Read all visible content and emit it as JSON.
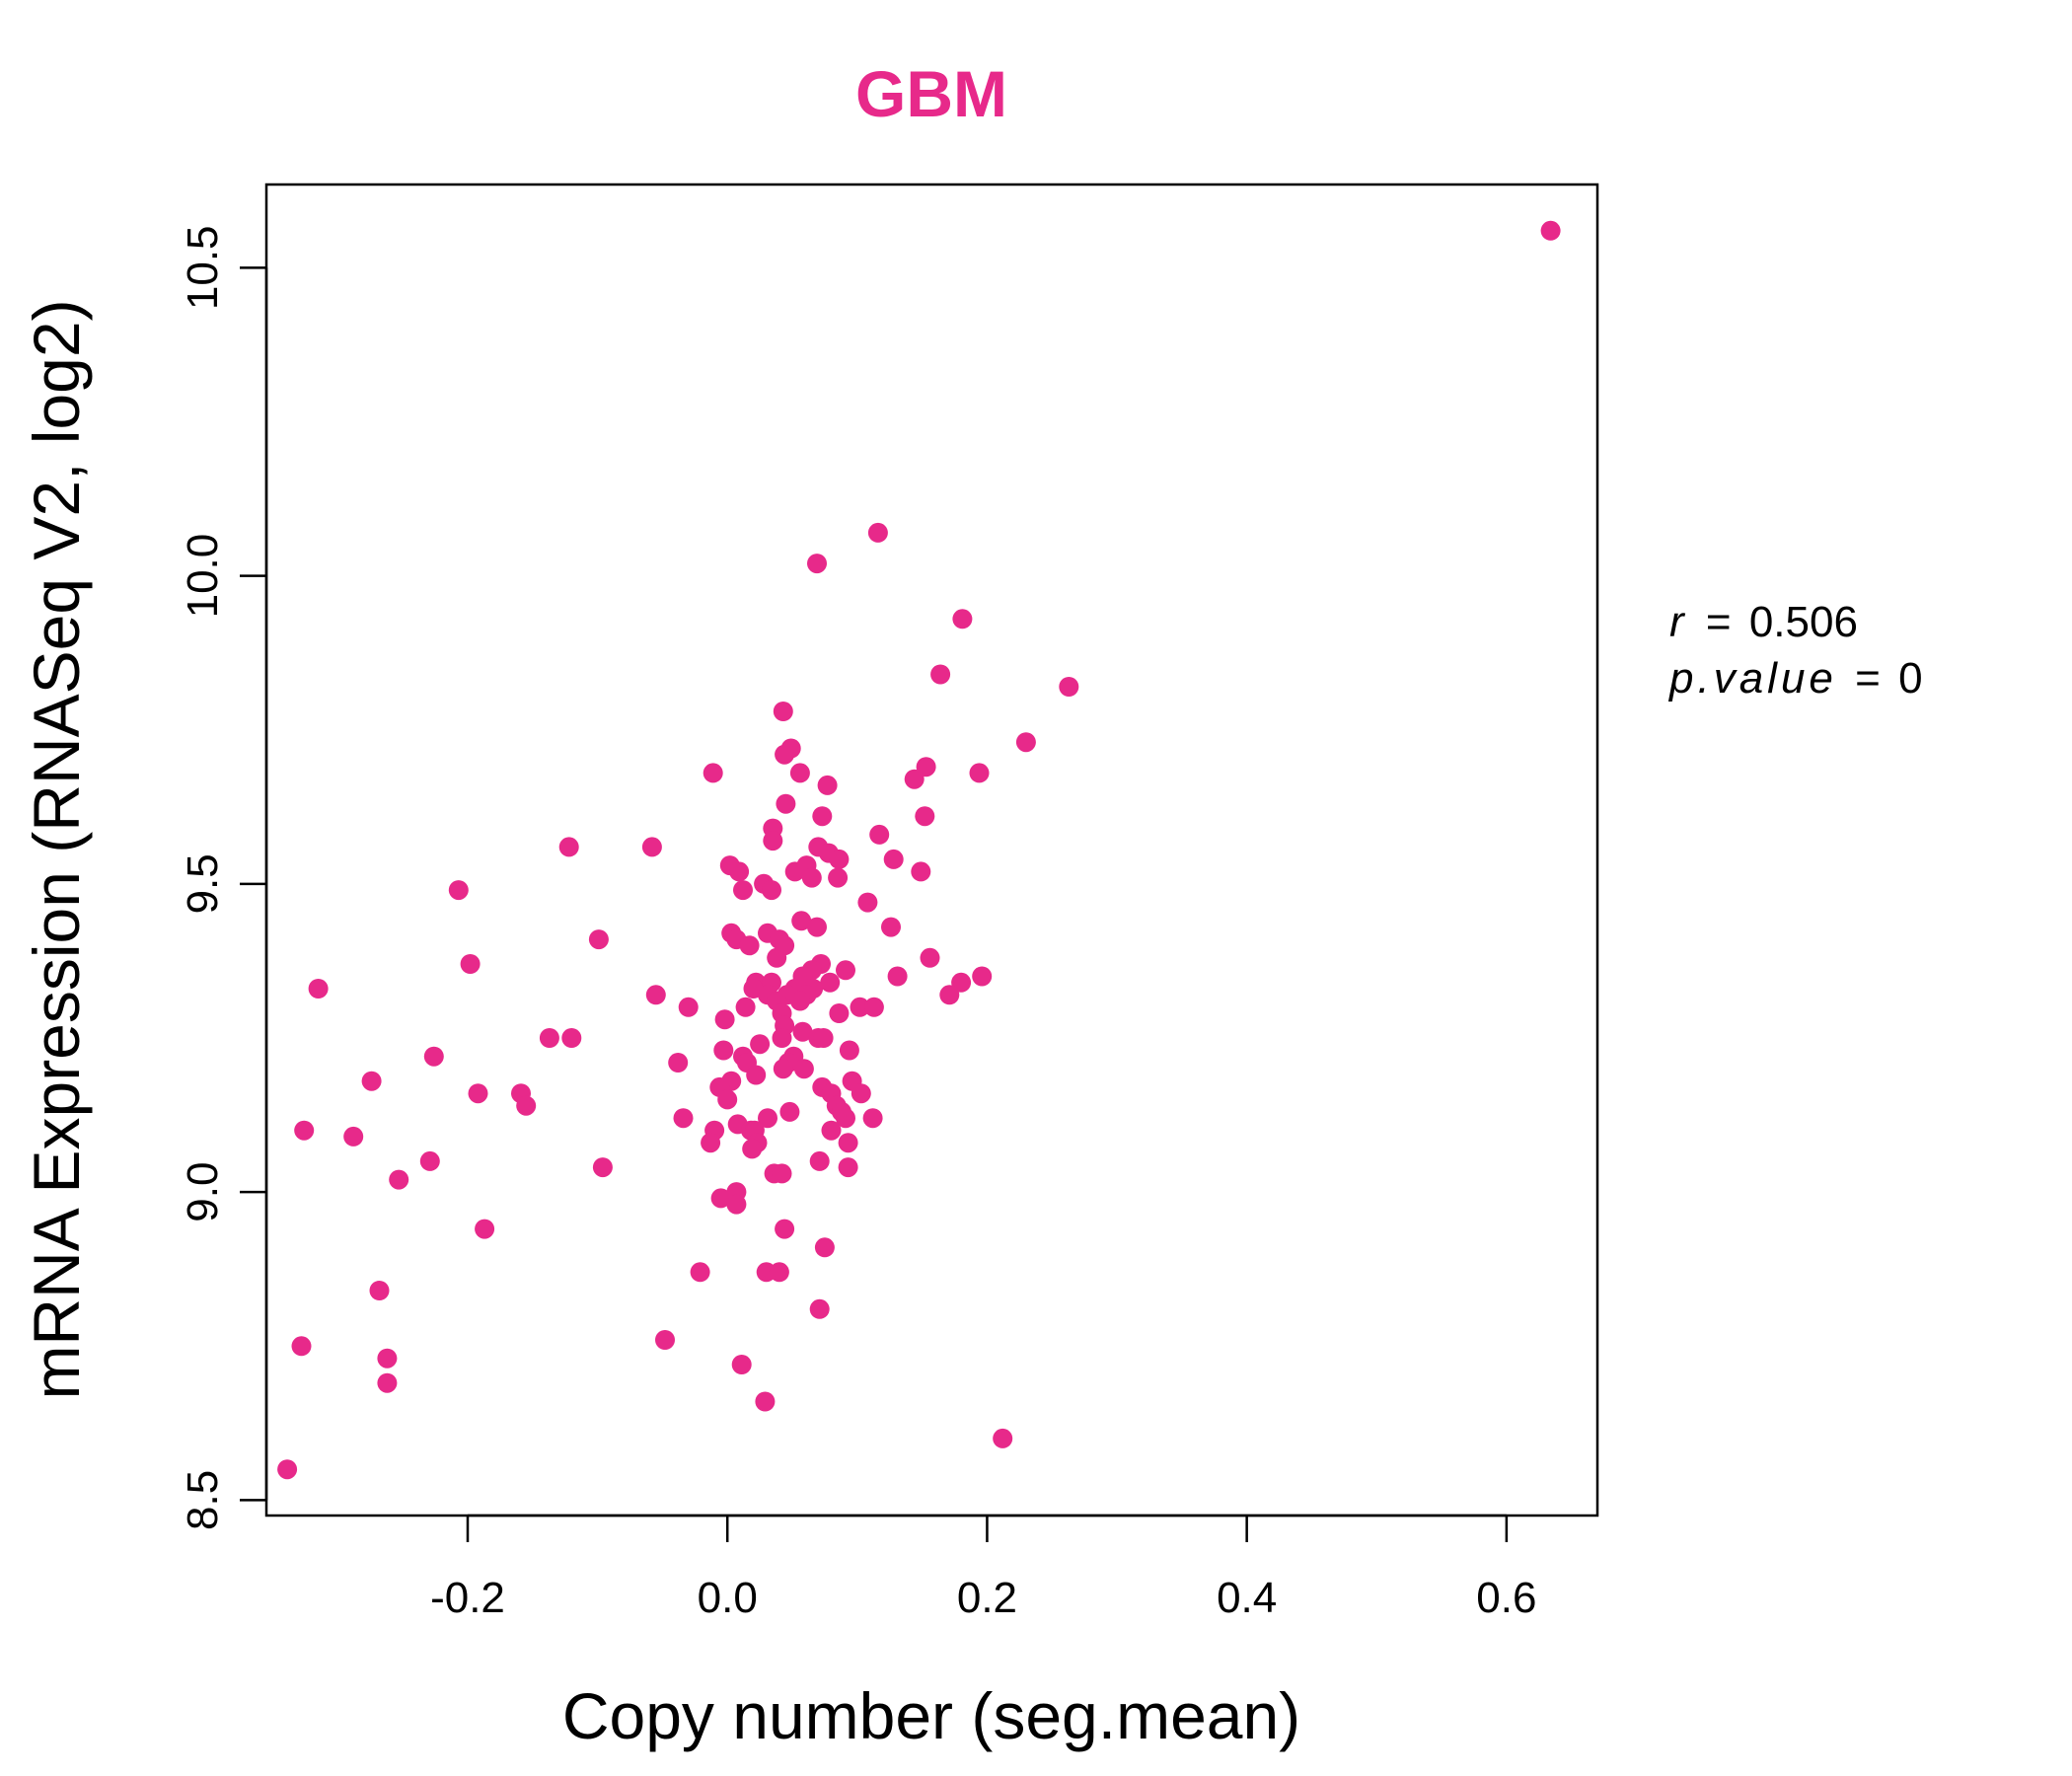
{
  "colors": {
    "point": "#E7298A",
    "title": "#E7298A",
    "axis": "#000000"
  },
  "stats": {
    "r_label": "r",
    "r_value": "0.506",
    "p_label": "p.value",
    "p_value": "0"
  },
  "chart_data": {
    "type": "scatter",
    "title": "GBM",
    "xlabel": "Copy number (seg.mean)",
    "ylabel": "mRNA Expression (RNASeq V2, log2)",
    "xlim": [
      -0.355,
      0.67
    ],
    "ylim": [
      8.475,
      10.635
    ],
    "x_ticks": [
      -0.2,
      0.0,
      0.2,
      0.4,
      0.6
    ],
    "x_tick_labels": [
      "-0.2",
      "0.0",
      "0.2",
      "0.4",
      "0.6"
    ],
    "y_ticks": [
      8.5,
      9.0,
      9.5,
      10.0,
      10.5
    ],
    "y_tick_labels": [
      "8.5",
      "9.0",
      "9.5",
      "10.0",
      "10.5"
    ],
    "grid": false,
    "legend": "none",
    "points": [
      [
        0.634,
        10.56
      ],
      [
        0.116,
        10.07
      ],
      [
        0.069,
        10.02
      ],
      [
        0.181,
        9.93
      ],
      [
        0.164,
        9.84
      ],
      [
        0.263,
        9.82
      ],
      [
        0.043,
        9.78
      ],
      [
        0.049,
        9.72
      ],
      [
        0.044,
        9.71
      ],
      [
        0.23,
        9.73
      ],
      [
        -0.011,
        9.68
      ],
      [
        0.056,
        9.68
      ],
      [
        0.153,
        9.69
      ],
      [
        0.194,
        9.68
      ],
      [
        0.144,
        9.67
      ],
      [
        0.077,
        9.66
      ],
      [
        0.045,
        9.63
      ],
      [
        0.073,
        9.61
      ],
      [
        0.152,
        9.61
      ],
      [
        0.035,
        9.59
      ],
      [
        0.035,
        9.57
      ],
      [
        0.117,
        9.58
      ],
      [
        -0.122,
        9.56
      ],
      [
        -0.058,
        9.56
      ],
      [
        0.07,
        9.56
      ],
      [
        0.078,
        9.55
      ],
      [
        0.128,
        9.54
      ],
      [
        0.002,
        9.53
      ],
      [
        0.086,
        9.54
      ],
      [
        0.009,
        9.52
      ],
      [
        0.052,
        9.52
      ],
      [
        0.061,
        9.53
      ],
      [
        0.065,
        9.51
      ],
      [
        0.149,
        9.52
      ],
      [
        0.085,
        9.51
      ],
      [
        0.028,
        9.5
      ],
      [
        0.034,
        9.49
      ],
      [
        -0.207,
        9.49
      ],
      [
        0.012,
        9.49
      ],
      [
        0.108,
        9.47
      ],
      [
        0.057,
        9.44
      ],
      [
        0.069,
        9.43
      ],
      [
        0.126,
        9.43
      ],
      [
        0.031,
        9.42
      ],
      [
        0.003,
        9.42
      ],
      [
        0.04,
        9.41
      ],
      [
        0.007,
        9.41
      ],
      [
        -0.099,
        9.41
      ],
      [
        0.017,
        9.4
      ],
      [
        0.044,
        9.4
      ],
      [
        0.038,
        9.38
      ],
      [
        0.156,
        9.38
      ],
      [
        -0.198,
        9.37
      ],
      [
        0.072,
        9.37
      ],
      [
        0.065,
        9.36
      ],
      [
        0.091,
        9.36
      ],
      [
        0.058,
        9.35
      ],
      [
        0.131,
        9.35
      ],
      [
        0.196,
        9.35
      ],
      [
        0.022,
        9.34
      ],
      [
        0.034,
        9.34
      ],
      [
        0.079,
        9.34
      ],
      [
        0.18,
        9.34
      ],
      [
        -0.315,
        9.33
      ],
      [
        0.02,
        9.33
      ],
      [
        0.052,
        9.33
      ],
      [
        0.066,
        9.33
      ],
      [
        0.031,
        9.32
      ],
      [
        0.046,
        9.32
      ],
      [
        0.061,
        9.32
      ],
      [
        -0.055,
        9.32
      ],
      [
        0.171,
        9.32
      ],
      [
        0.038,
        9.31
      ],
      [
        0.056,
        9.31
      ],
      [
        0.102,
        9.3
      ],
      [
        0.113,
        9.3
      ],
      [
        -0.03,
        9.3
      ],
      [
        0.014,
        9.3
      ],
      [
        0.042,
        9.29
      ],
      [
        0.086,
        9.29
      ],
      [
        -0.002,
        9.28
      ],
      [
        0.044,
        9.27
      ],
      [
        0.058,
        9.26
      ],
      [
        -0.137,
        9.25
      ],
      [
        -0.12,
        9.25
      ],
      [
        0.042,
        9.25
      ],
      [
        0.07,
        9.25
      ],
      [
        0.074,
        9.25
      ],
      [
        0.025,
        9.24
      ],
      [
        0.094,
        9.23
      ],
      [
        -0.003,
        9.23
      ],
      [
        0.012,
        9.22
      ],
      [
        0.051,
        9.22
      ],
      [
        -0.226,
        9.22
      ],
      [
        0.015,
        9.21
      ],
      [
        0.047,
        9.21
      ],
      [
        -0.038,
        9.21
      ],
      [
        0.043,
        9.2
      ],
      [
        0.059,
        9.2
      ],
      [
        -0.274,
        9.18
      ],
      [
        0.022,
        9.19
      ],
      [
        0.003,
        9.18
      ],
      [
        0.096,
        9.18
      ],
      [
        -0.006,
        9.17
      ],
      [
        0.073,
        9.17
      ],
      [
        0.08,
        9.16
      ],
      [
        0.103,
        9.16
      ],
      [
        -0.192,
        9.16
      ],
      [
        -0.159,
        9.16
      ],
      [
        0.0,
        9.15
      ],
      [
        -0.155,
        9.14
      ],
      [
        0.084,
        9.14
      ],
      [
        0.048,
        9.13
      ],
      [
        0.088,
        9.13
      ],
      [
        0.091,
        9.12
      ],
      [
        -0.034,
        9.12
      ],
      [
        0.031,
        9.12
      ],
      [
        0.112,
        9.12
      ],
      [
        0.008,
        9.11
      ],
      [
        0.018,
        9.1
      ],
      [
        0.08,
        9.1
      ],
      [
        0.021,
        9.1
      ],
      [
        -0.326,
        9.1
      ],
      [
        -0.01,
        9.1
      ],
      [
        -0.288,
        9.09
      ],
      [
        0.093,
        9.08
      ],
      [
        -0.013,
        9.08
      ],
      [
        0.023,
        9.08
      ],
      [
        0.019,
        9.07
      ],
      [
        -0.229,
        9.05
      ],
      [
        0.071,
        9.05
      ],
      [
        -0.096,
        9.04
      ],
      [
        0.093,
        9.04
      ],
      [
        0.036,
        9.03
      ],
      [
        0.042,
        9.03
      ],
      [
        -0.253,
        9.02
      ],
      [
        0.007,
        9.0
      ],
      [
        -0.005,
        8.99
      ],
      [
        0.007,
        8.98
      ],
      [
        -0.187,
        8.94
      ],
      [
        0.044,
        8.94
      ],
      [
        0.075,
        8.91
      ],
      [
        0.03,
        8.87
      ],
      [
        0.04,
        8.87
      ],
      [
        -0.021,
        8.87
      ],
      [
        -0.268,
        8.84
      ],
      [
        0.071,
        8.81
      ],
      [
        -0.048,
        8.76
      ],
      [
        -0.328,
        8.75
      ],
      [
        -0.262,
        8.73
      ],
      [
        0.011,
        8.72
      ],
      [
        -0.262,
        8.69
      ],
      [
        0.029,
        8.66
      ],
      [
        0.212,
        8.6
      ],
      [
        -0.339,
        8.55
      ]
    ]
  }
}
